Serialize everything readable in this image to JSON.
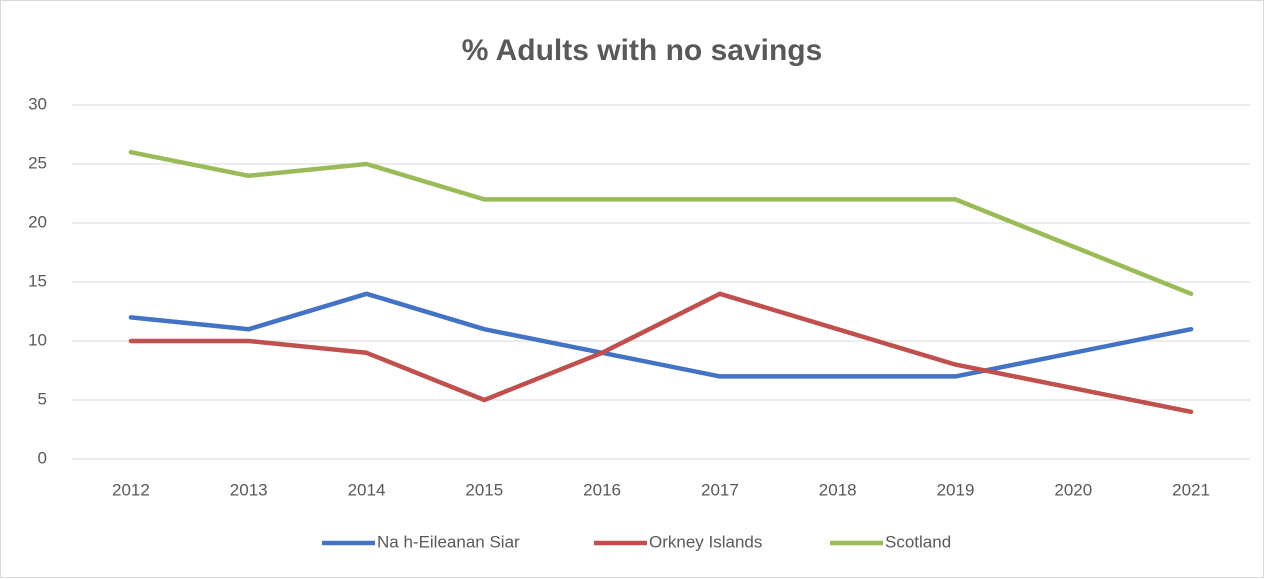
{
  "chart_data": {
    "type": "line",
    "title": "% Adults with no savings",
    "categories": [
      "2012",
      "2013",
      "2014",
      "2015",
      "2016",
      "2017",
      "2018",
      "2019",
      "2020",
      "2021"
    ],
    "series": [
      {
        "name": "Na h-Eileanan Siar",
        "color": "#4472c4",
        "values": [
          12,
          11,
          14,
          11,
          9,
          7,
          7,
          7,
          9,
          11
        ]
      },
      {
        "name": "Orkney Islands",
        "color": "#c0504d",
        "values": [
          10,
          10,
          9,
          5,
          9,
          14,
          11,
          8,
          6,
          4
        ]
      },
      {
        "name": "Scotland",
        "color": "#9bbb59",
        "values": [
          26,
          24,
          25,
          22,
          22,
          22,
          22,
          22,
          18,
          14
        ]
      }
    ],
    "ylim": [
      0,
      30
    ],
    "yticks": [
      0,
      5,
      10,
      15,
      20,
      25,
      30
    ],
    "grid": true,
    "legend": "bottom"
  }
}
